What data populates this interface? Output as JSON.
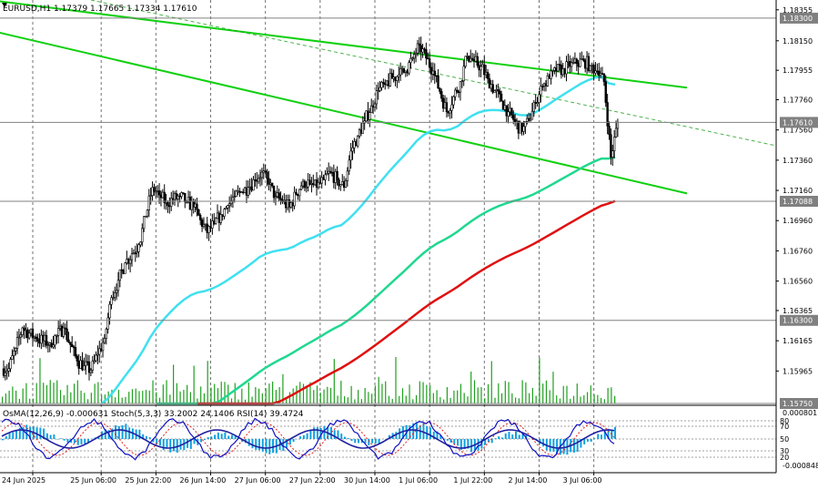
{
  "header": {
    "symbol_line": "EURUSD,H1  1.17379 1.17665 1.17334 1.17610",
    "indicator_line": "OsMA(12,26,9) -0.000631 Stoch(5,3,3) 33.2002 24.1406  RSI(14) 39.4724"
  },
  "colors": {
    "bull_candle": "#000000",
    "bear_candle": "#000000",
    "ema_fast": "#40e0f0",
    "ema_mid": "#20d890",
    "ema_slow": "#e01010",
    "channel": "#10d010",
    "volume": "#20a020",
    "price_line": "#808080",
    "osma": "#10a0e0",
    "stoch_main": "#1010c0",
    "stoch_signal": "#e02020",
    "rsi": "#20a0f0"
  },
  "chart_data": {
    "type": "candlestick",
    "symbol": "EURUSD",
    "timeframe": "H1",
    "last": {
      "open": 1.17379,
      "high": 1.17665,
      "low": 1.17334,
      "close": 1.1761
    },
    "price_axis": {
      "range": [
        1.1575,
        1.1842
      ],
      "ticks": [
        "1.18355",
        "1.18150",
        "1.17955",
        "1.17760",
        "1.17560",
        "1.17360",
        "1.17160",
        "1.16960",
        "1.16760",
        "1.16560",
        "1.16365",
        "1.16165",
        "1.15965"
      ],
      "tick_values": [
        1.18355,
        1.1815,
        1.17955,
        1.1776,
        1.1756,
        1.1736,
        1.1716,
        1.1696,
        1.1676,
        1.1656,
        1.16365,
        1.16165,
        1.15965
      ],
      "highlighted_levels": [
        {
          "label": "1.18300",
          "value": 1.183
        },
        {
          "label": "1.17610",
          "value": 1.1761
        },
        {
          "label": "1.17088",
          "value": 1.17088
        },
        {
          "label": "1.16300",
          "value": 1.163
        },
        {
          "label": "1.15750",
          "value": 1.1575
        }
      ]
    },
    "time_axis": {
      "labels": [
        "24 Jun 2025",
        "25 Jun 06:00",
        "25 Jun 22:00",
        "26 Jun 14:00",
        "27 Jun 06:00",
        "27 Jun 22:00",
        "30 Jun 14:00",
        "1 Jul 06:00",
        "1 Jul 22:00",
        "2 Jul 14:00",
        "3 Jul 06:00"
      ],
      "label_bar_index": [
        0,
        10,
        18,
        26,
        34,
        42,
        50,
        58,
        66,
        74,
        82
      ]
    },
    "price_path_keypoints": [
      [
        0,
        1.1598
      ],
      [
        2,
        1.1625
      ],
      [
        4,
        1.1618
      ],
      [
        6,
        1.1615
      ],
      [
        8,
        1.1625
      ],
      [
        10,
        1.1603
      ],
      [
        12,
        1.1597
      ],
      [
        14,
        1.1618
      ],
      [
        15,
        1.1645
      ],
      [
        17,
        1.1668
      ],
      [
        19,
        1.168
      ],
      [
        21,
        1.1718
      ],
      [
        23,
        1.1708
      ],
      [
        25,
        1.1712
      ],
      [
        27,
        1.1705
      ],
      [
        29,
        1.1688
      ],
      [
        31,
        1.17
      ],
      [
        33,
        1.1712
      ],
      [
        35,
        1.1718
      ],
      [
        37,
        1.1728
      ],
      [
        39,
        1.1712
      ],
      [
        41,
        1.1705
      ],
      [
        43,
        1.1722
      ],
      [
        45,
        1.1718
      ],
      [
        47,
        1.1728
      ],
      [
        49,
        1.1718
      ],
      [
        50,
        1.1742
      ],
      [
        52,
        1.1762
      ],
      [
        54,
        1.1782
      ],
      [
        56,
        1.179
      ],
      [
        58,
        1.1795
      ],
      [
        60,
        1.1812
      ],
      [
        62,
        1.1795
      ],
      [
        64,
        1.1768
      ],
      [
        66,
        1.1788
      ],
      [
        67,
        1.1805
      ],
      [
        69,
        1.1798
      ],
      [
        71,
        1.1782
      ],
      [
        73,
        1.1768
      ],
      [
        75,
        1.1755
      ],
      [
        76,
        1.1762
      ],
      [
        78,
        1.1785
      ],
      [
        80,
        1.1795
      ],
      [
        82,
        1.1798
      ],
      [
        84,
        1.1802
      ],
      [
        86,
        1.1795
      ],
      [
        87,
        1.1788
      ],
      [
        88,
        1.1738
      ],
      [
        89,
        1.1761
      ]
    ],
    "moving_averages": [
      {
        "name": "ema_fast",
        "start": 1.1574,
        "end": 1.1786
      },
      {
        "name": "ema_mid",
        "start": 1.1545,
        "end": 1.1738
      },
      {
        "name": "ema_slow",
        "start": 1.1545,
        "end": 1.1709
      }
    ],
    "channel_lines": [
      {
        "from": [
          -2,
          1.1842
        ],
        "to": [
          100,
          1.1784
        ]
      },
      {
        "from": [
          -2,
          1.1822
        ],
        "to": [
          100,
          1.1714
        ]
      }
    ],
    "indicators": {
      "osma": {
        "value": -0.000631,
        "axis_ticks": [
          "0.000801",
          "-0.000848"
        ]
      },
      "stochastic": {
        "main": 33.2002,
        "signal": 24.1406,
        "axis_ticks": [
          "80",
          "70",
          "50",
          "30",
          "20"
        ]
      },
      "rsi": {
        "value": 39.4724
      }
    }
  }
}
